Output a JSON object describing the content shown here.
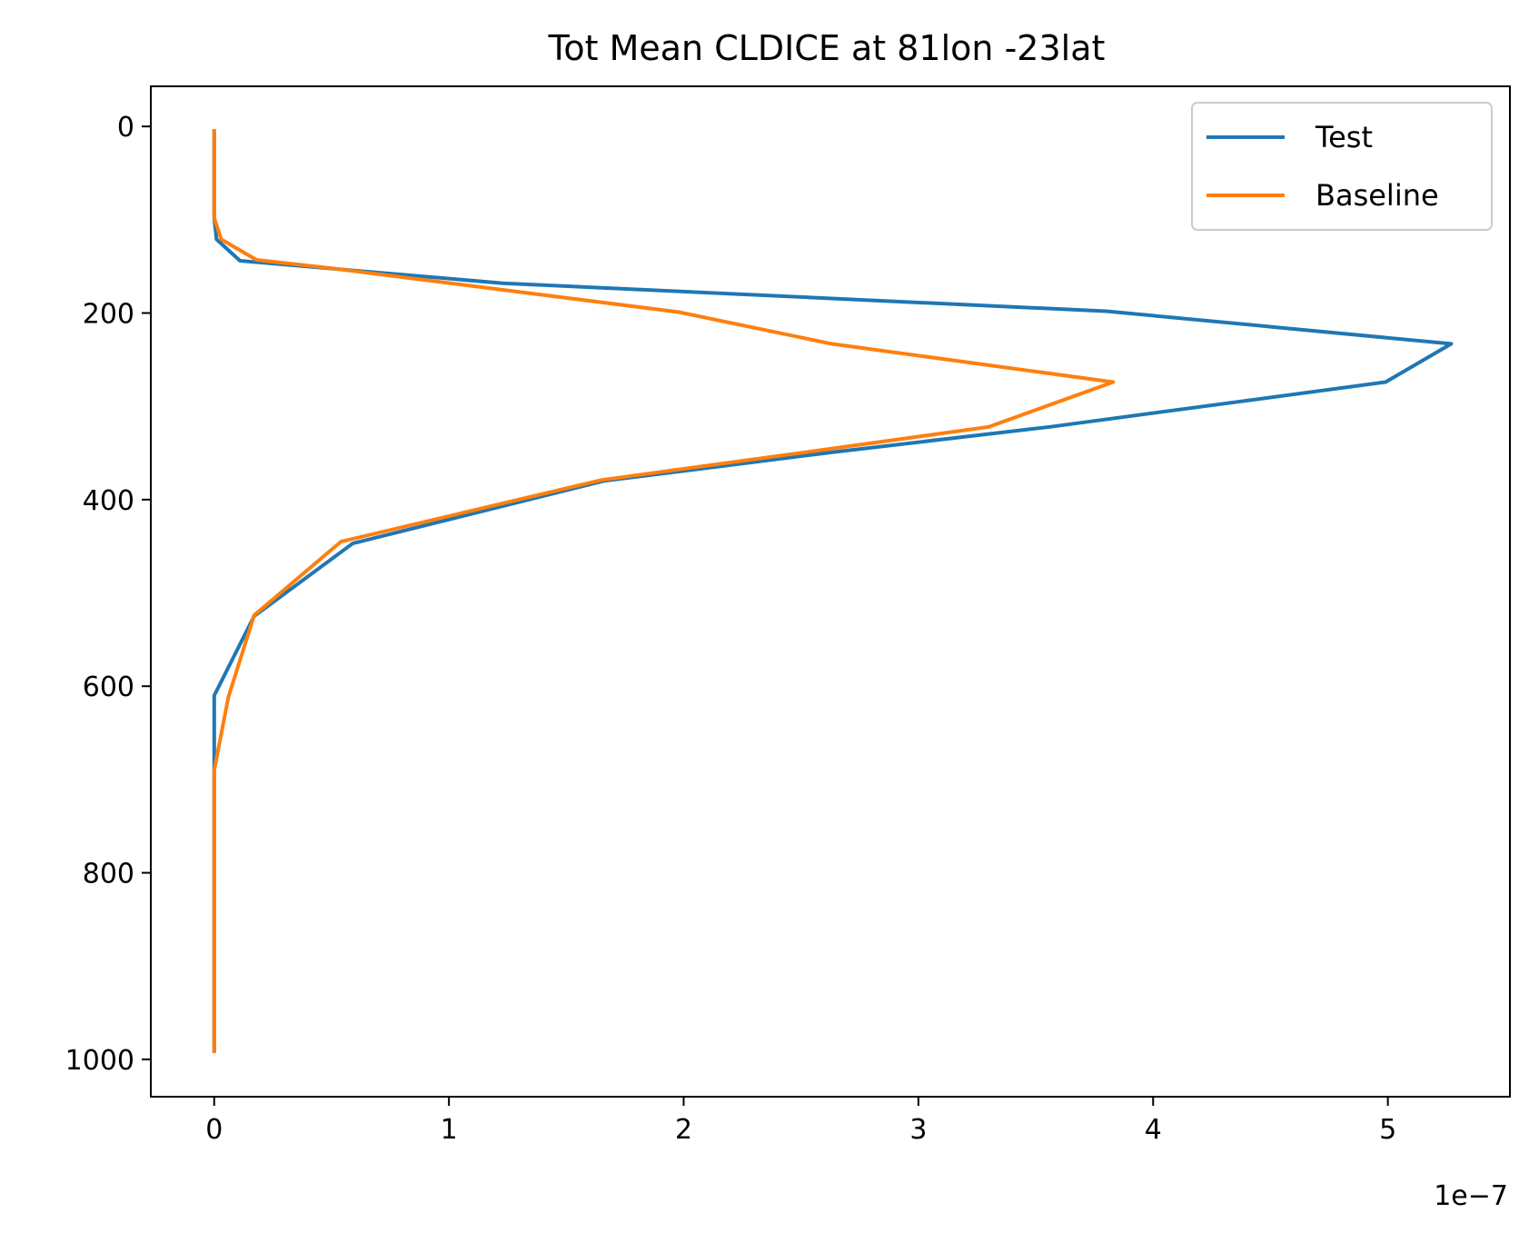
{
  "chart_data": {
    "type": "line",
    "title": "Tot Mean CLDICE at 81lon -23lat",
    "xlabel": "",
    "ylabel": "",
    "x_offset_text": "1e−7",
    "xlim": [
      -0.27,
      5.52
    ],
    "ylim": [
      1040,
      -43
    ],
    "y_inverted": true,
    "x_ticks": [
      0,
      1,
      2,
      3,
      4,
      5
    ],
    "x_tick_labels": [
      "0",
      "1",
      "2",
      "3",
      "4",
      "5"
    ],
    "y_ticks": [
      0,
      200,
      400,
      600,
      800,
      1000
    ],
    "y_tick_labels": [
      "0",
      "200",
      "400",
      "600",
      "800",
      "1000"
    ],
    "grid": false,
    "legend": {
      "position": "upper-right"
    },
    "series": [
      {
        "name": "Test",
        "color": "#1f77b4",
        "points": [
          [
            0.0,
            3
          ],
          [
            0.0,
            20
          ],
          [
            0.0,
            40
          ],
          [
            0.0,
            60
          ],
          [
            0.0,
            80
          ],
          [
            0.0,
            98
          ],
          [
            0.01,
            121
          ],
          [
            0.11,
            144
          ],
          [
            1.23,
            168
          ],
          [
            3.8,
            198
          ],
          [
            5.27,
            233
          ],
          [
            4.99,
            274
          ],
          [
            3.56,
            322
          ],
          [
            2.64,
            349
          ],
          [
            1.66,
            380
          ],
          [
            0.59,
            447
          ],
          [
            0.17,
            525
          ],
          [
            0.0,
            610
          ],
          [
            0.0,
            690
          ],
          [
            0.0,
            760
          ],
          [
            0.0,
            850
          ],
          [
            0.0,
            925
          ],
          [
            0.0,
            993
          ]
        ]
      },
      {
        "name": "Baseline",
        "color": "#ff7f0e",
        "points": [
          [
            0.0,
            3
          ],
          [
            0.0,
            20
          ],
          [
            0.0,
            40
          ],
          [
            0.0,
            60
          ],
          [
            0.0,
            80
          ],
          [
            0.0,
            98
          ],
          [
            0.03,
            121
          ],
          [
            0.18,
            143
          ],
          [
            0.5,
            152
          ],
          [
            1.98,
            199
          ],
          [
            2.63,
            233
          ],
          [
            3.83,
            274
          ],
          [
            3.3,
            322
          ],
          [
            2.64,
            345
          ],
          [
            1.65,
            379
          ],
          [
            0.54,
            445
          ],
          [
            0.17,
            524
          ],
          [
            0.06,
            612
          ],
          [
            0.0,
            690
          ],
          [
            0.0,
            760
          ],
          [
            0.0,
            850
          ],
          [
            0.0,
            925
          ],
          [
            0.0,
            993
          ]
        ]
      }
    ]
  }
}
